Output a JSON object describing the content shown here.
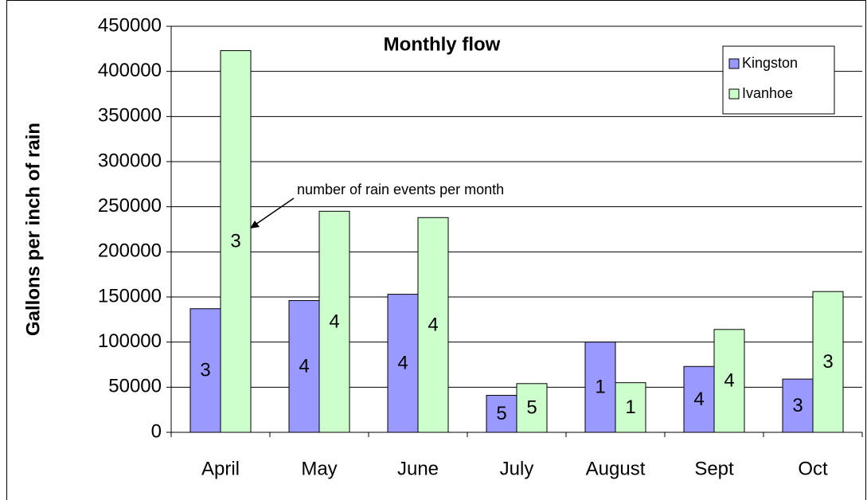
{
  "chart_data": {
    "type": "bar",
    "title": "Monthly flow",
    "y_label": "Gallons per inch of rain",
    "annotation": "number of rain events per month",
    "categories": [
      "April",
      "May",
      "June",
      "July",
      "August",
      "Sept",
      "Oct"
    ],
    "series": [
      {
        "name": "Kingston",
        "color": "#9999ff",
        "values": [
          137000,
          146000,
          153000,
          41000,
          100000,
          73000,
          59000
        ],
        "events": [
          3,
          4,
          4,
          5,
          1,
          4,
          3
        ]
      },
      {
        "name": "Ivanhoe",
        "color": "#ccffcc",
        "values": [
          423000,
          245000,
          238000,
          54000,
          55000,
          114000,
          156000
        ],
        "events": [
          3,
          4,
          4,
          5,
          1,
          4,
          3
        ]
      }
    ],
    "ylim": [
      0,
      450000
    ],
    "yticks": [
      0,
      50000,
      100000,
      150000,
      200000,
      250000,
      300000,
      350000,
      400000,
      450000
    ],
    "grid": true,
    "legend": "top-right"
  }
}
